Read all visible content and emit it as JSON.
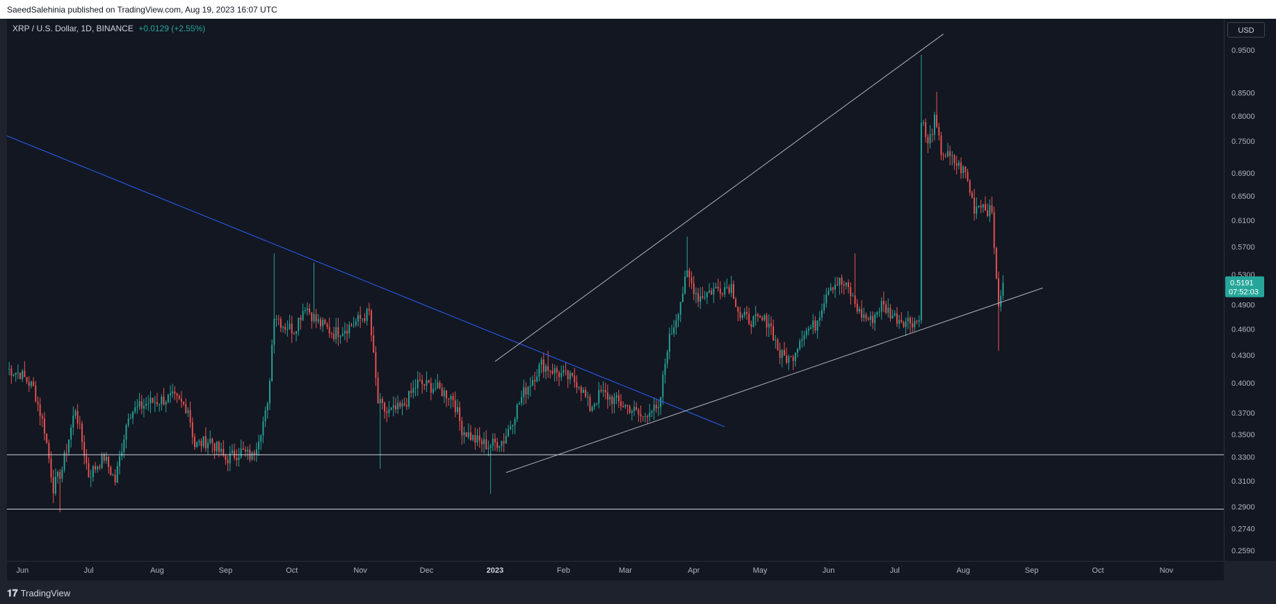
{
  "header": {
    "published": "SaeedSalehinia published on TradingView.com, Aug 19, 2023 16:07 UTC"
  },
  "legend": {
    "symbol": "XRP / U.S. Dollar, 1D, BINANCE",
    "change": "+0.0129 (+2.55%)"
  },
  "currency_button": "USD",
  "footer": {
    "brand": "TradingView"
  },
  "colors": {
    "up": "#26a69a",
    "down": "#ef5350",
    "trendline_blue": "#2962ff",
    "trendline_white": "#b2b5be",
    "background": "#131722"
  },
  "chart_data": {
    "type": "candlestick",
    "y_scale": "log",
    "ylim": [
      0.252,
      1.03
    ],
    "x_start": "2022-05-25",
    "x_end": "2023-11-27",
    "y_ticks": [
      "0.9500",
      "0.8500",
      "0.8000",
      "0.7500",
      "0.6900",
      "0.6500",
      "0.6100",
      "0.5700",
      "0.5300",
      "0.4900",
      "0.4600",
      "0.4300",
      "0.4000",
      "0.3700",
      "0.3500",
      "0.3300",
      "0.3100",
      "0.2900",
      "0.2740",
      "0.2590"
    ],
    "x_ticks": [
      {
        "label": "Jun",
        "date": "2022-06-01"
      },
      {
        "label": "Jul",
        "date": "2022-07-01"
      },
      {
        "label": "Aug",
        "date": "2022-08-01"
      },
      {
        "label": "Sep",
        "date": "2022-09-01"
      },
      {
        "label": "Oct",
        "date": "2022-10-01"
      },
      {
        "label": "Nov",
        "date": "2022-11-01"
      },
      {
        "label": "Dec",
        "date": "2022-12-01"
      },
      {
        "label": "2023",
        "date": "2023-01-01",
        "bold": true
      },
      {
        "label": "Feb",
        "date": "2023-02-01"
      },
      {
        "label": "Mar",
        "date": "2023-03-01"
      },
      {
        "label": "Apr",
        "date": "2023-04-01"
      },
      {
        "label": "May",
        "date": "2023-05-01"
      },
      {
        "label": "Jun",
        "date": "2023-06-01"
      },
      {
        "label": "Jul",
        "date": "2023-07-01"
      },
      {
        "label": "Aug",
        "date": "2023-08-01"
      },
      {
        "label": "Sep",
        "date": "2023-09-01"
      },
      {
        "label": "Oct",
        "date": "2023-10-01"
      },
      {
        "label": "Nov",
        "date": "2023-11-01"
      }
    ],
    "closes": [
      {
        "date": "2022-05-25",
        "close": 0.415
      },
      {
        "date": "2022-05-31",
        "close": 0.41
      },
      {
        "date": "2022-06-06",
        "close": 0.395
      },
      {
        "date": "2022-06-11",
        "close": 0.355
      },
      {
        "date": "2022-06-15",
        "close": 0.305
      },
      {
        "date": "2022-06-19",
        "close": 0.32
      },
      {
        "date": "2022-06-25",
        "close": 0.375
      },
      {
        "date": "2022-07-01",
        "close": 0.315
      },
      {
        "date": "2022-07-08",
        "close": 0.33
      },
      {
        "date": "2022-07-13",
        "close": 0.31
      },
      {
        "date": "2022-07-19",
        "close": 0.37
      },
      {
        "date": "2022-07-28",
        "close": 0.38
      },
      {
        "date": "2022-08-08",
        "close": 0.385
      },
      {
        "date": "2022-08-15",
        "close": 0.375
      },
      {
        "date": "2022-08-18",
        "close": 0.34
      },
      {
        "date": "2022-08-25",
        "close": 0.345
      },
      {
        "date": "2022-09-01",
        "close": 0.328
      },
      {
        "date": "2022-09-08",
        "close": 0.335
      },
      {
        "date": "2022-09-13",
        "close": 0.33
      },
      {
        "date": "2022-09-20",
        "close": 0.375
      },
      {
        "date": "2022-09-23",
        "close": 0.48
      },
      {
        "date": "2022-09-27",
        "close": 0.465
      },
      {
        "date": "2022-10-02",
        "close": 0.46
      },
      {
        "date": "2022-10-07",
        "close": 0.49
      },
      {
        "date": "2022-10-12",
        "close": 0.47
      },
      {
        "date": "2022-10-20",
        "close": 0.455
      },
      {
        "date": "2022-10-28",
        "close": 0.465
      },
      {
        "date": "2022-11-05",
        "close": 0.48
      },
      {
        "date": "2022-11-09",
        "close": 0.38
      },
      {
        "date": "2022-11-13",
        "close": 0.37
      },
      {
        "date": "2022-11-20",
        "close": 0.375
      },
      {
        "date": "2022-11-27",
        "close": 0.4
      },
      {
        "date": "2022-12-05",
        "close": 0.395
      },
      {
        "date": "2022-12-13",
        "close": 0.385
      },
      {
        "date": "2022-12-17",
        "close": 0.355
      },
      {
        "date": "2022-12-23",
        "close": 0.345
      },
      {
        "date": "2022-12-29",
        "close": 0.34
      },
      {
        "date": "2023-01-05",
        "close": 0.345
      },
      {
        "date": "2023-01-11",
        "close": 0.375
      },
      {
        "date": "2023-01-14",
        "close": 0.39
      },
      {
        "date": "2023-01-22",
        "close": 0.42
      },
      {
        "date": "2023-01-30",
        "close": 0.41
      },
      {
        "date": "2023-02-08",
        "close": 0.4
      },
      {
        "date": "2023-02-13",
        "close": 0.375
      },
      {
        "date": "2023-02-18",
        "close": 0.39
      },
      {
        "date": "2023-02-26",
        "close": 0.38
      },
      {
        "date": "2023-03-03",
        "close": 0.375
      },
      {
        "date": "2023-03-09",
        "close": 0.365
      },
      {
        "date": "2023-03-12",
        "close": 0.375
      },
      {
        "date": "2023-03-16",
        "close": 0.37
      },
      {
        "date": "2023-03-20",
        "close": 0.44
      },
      {
        "date": "2023-03-24",
        "close": 0.475
      },
      {
        "date": "2023-03-29",
        "close": 0.53
      },
      {
        "date": "2023-04-03",
        "close": 0.5
      },
      {
        "date": "2023-04-10",
        "close": 0.51
      },
      {
        "date": "2023-04-18",
        "close": 0.515
      },
      {
        "date": "2023-04-22",
        "close": 0.475
      },
      {
        "date": "2023-04-28",
        "close": 0.47
      },
      {
        "date": "2023-05-05",
        "close": 0.47
      },
      {
        "date": "2023-05-10",
        "close": 0.43
      },
      {
        "date": "2023-05-15",
        "close": 0.425
      },
      {
        "date": "2023-05-20",
        "close": 0.455
      },
      {
        "date": "2023-05-26",
        "close": 0.465
      },
      {
        "date": "2023-06-01",
        "close": 0.515
      },
      {
        "date": "2023-06-06",
        "close": 0.52
      },
      {
        "date": "2023-06-10",
        "close": 0.51
      },
      {
        "date": "2023-06-15",
        "close": 0.48
      },
      {
        "date": "2023-06-20",
        "close": 0.47
      },
      {
        "date": "2023-06-25",
        "close": 0.49
      },
      {
        "date": "2023-07-01",
        "close": 0.475
      },
      {
        "date": "2023-07-06",
        "close": 0.47
      },
      {
        "date": "2023-07-12",
        "close": 0.47
      },
      {
        "date": "2023-07-13",
        "close": 0.8
      },
      {
        "date": "2023-07-16",
        "close": 0.74
      },
      {
        "date": "2023-07-19",
        "close": 0.79
      },
      {
        "date": "2023-07-22",
        "close": 0.73
      },
      {
        "date": "2023-07-28",
        "close": 0.71
      },
      {
        "date": "2023-08-02",
        "close": 0.69
      },
      {
        "date": "2023-08-06",
        "close": 0.63
      },
      {
        "date": "2023-08-09",
        "close": 0.64
      },
      {
        "date": "2023-08-14",
        "close": 0.62
      },
      {
        "date": "2023-08-16",
        "close": 0.53
      },
      {
        "date": "2023-08-17",
        "close": 0.48
      },
      {
        "date": "2023-08-18",
        "close": 0.5062
      },
      {
        "date": "2023-08-19",
        "close": 0.5191
      }
    ],
    "extremes": [
      {
        "date": "2022-06-18",
        "low": 0.286
      },
      {
        "date": "2022-09-23",
        "high": 0.56
      },
      {
        "date": "2022-10-11",
        "high": 0.547
      },
      {
        "date": "2022-11-10",
        "low": 0.32
      },
      {
        "date": "2022-12-30",
        "low": 0.3
      },
      {
        "date": "2023-01-25",
        "high": 0.435
      },
      {
        "date": "2023-03-29",
        "high": 0.585
      },
      {
        "date": "2023-06-13",
        "high": 0.56
      },
      {
        "date": "2023-07-13",
        "high": 0.938
      },
      {
        "date": "2023-07-20",
        "high": 0.852
      },
      {
        "date": "2023-08-17",
        "low": 0.435
      }
    ],
    "last_price": {
      "value": 0.5191,
      "label": "0.5191",
      "countdown": "07:52:03"
    },
    "drawings": {
      "horizontal": [
        0.332,
        0.2883
      ],
      "trendlines": [
        {
          "name": "descending-trendline",
          "color": "#2962ff",
          "from": {
            "date": "2022-05-25",
            "price": 0.76
          },
          "to": {
            "date": "2023-04-15",
            "price": 0.357
          }
        },
        {
          "name": "upper-channel-line",
          "color": "#b2b5be",
          "from": {
            "date": "2023-01-01",
            "price": 0.423
          },
          "to": {
            "date": "2023-07-23",
            "price": 0.99
          }
        },
        {
          "name": "lower-support-line",
          "color": "#b2b5be",
          "from": {
            "date": "2023-01-06",
            "price": 0.317
          },
          "to": {
            "date": "2023-09-06",
            "price": 0.512
          }
        }
      ]
    }
  }
}
